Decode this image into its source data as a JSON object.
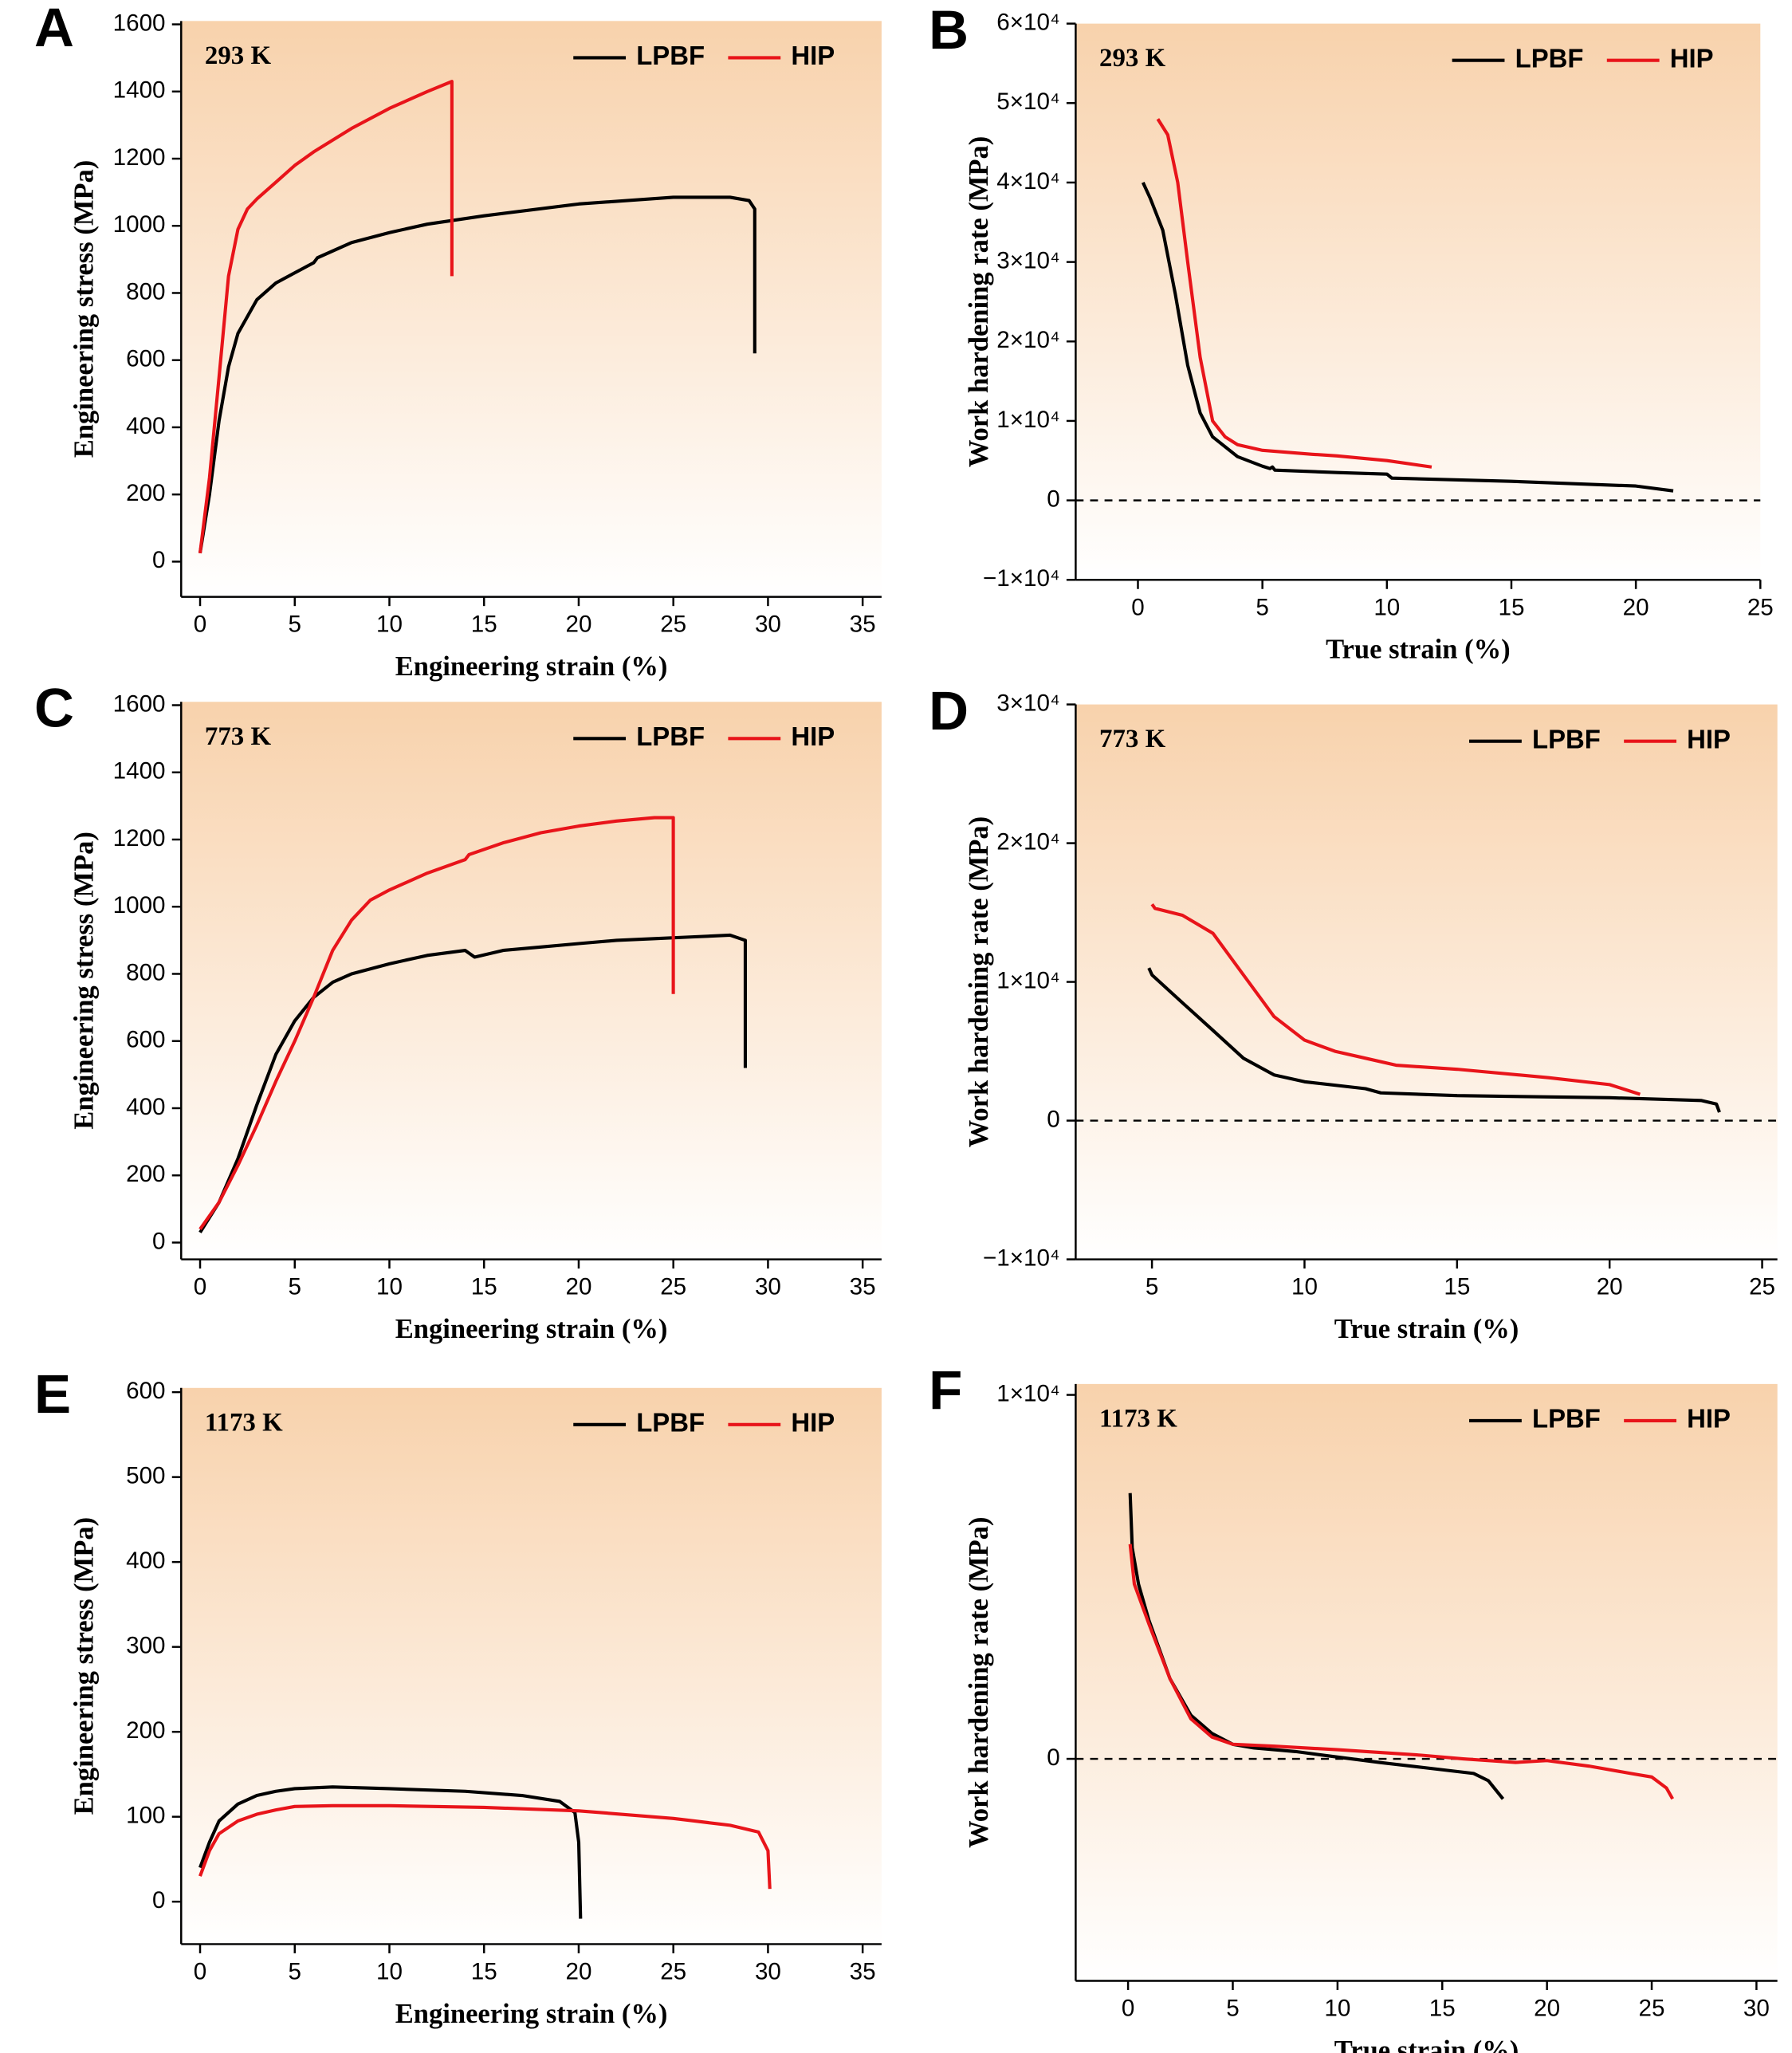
{
  "chart_data": [
    {
      "type": "line",
      "panel": "A",
      "annotation": "293 K",
      "x_label": "Engineering strain (%)",
      "y_label": "Engineering  stress (MPa)",
      "xlim": [
        -1,
        36
      ],
      "ylim": [
        -105,
        1610
      ],
      "xticks": [
        0,
        5,
        10,
        15,
        20,
        25,
        30,
        35
      ],
      "yticks": [
        0,
        200,
        400,
        600,
        800,
        1000,
        1200,
        1400,
        1600
      ],
      "legend": "upper right",
      "series": [
        {
          "name": "LPBF",
          "color": "#000000",
          "x": [
            0,
            0.5,
            1,
            1.5,
            2,
            3,
            4,
            5,
            6,
            6.2,
            8,
            10,
            12,
            15,
            20,
            25,
            28,
            29,
            29.3,
            29.3
          ],
          "values": [
            25,
            200,
            420,
            580,
            680,
            780,
            830,
            860,
            890,
            905,
            950,
            980,
            1005,
            1030,
            1065,
            1085,
            1085,
            1075,
            1050,
            620
          ]
        },
        {
          "name": "HIP",
          "color": "#e8141a",
          "x": [
            0,
            0.5,
            1,
            1.5,
            2,
            2.5,
            3,
            4,
            5,
            6,
            8,
            10,
            12,
            13.3,
            13.3
          ],
          "values": [
            25,
            250,
            550,
            850,
            990,
            1050,
            1080,
            1130,
            1180,
            1220,
            1290,
            1350,
            1400,
            1430,
            850
          ]
        }
      ]
    },
    {
      "type": "line",
      "panel": "B",
      "annotation": "293 K",
      "x_label": "True strain (%)",
      "y_label": "Work hardening rate (MPa)",
      "xlim": [
        -2.5,
        25
      ],
      "ylim": [
        -10000,
        60000
      ],
      "xticks": [
        0,
        5,
        10,
        15,
        20,
        25
      ],
      "yticks": [
        {
          "value": -10000,
          "label": "−1×10⁴"
        },
        0,
        {
          "value": 10000,
          "label": "1×10⁴"
        },
        {
          "value": 20000,
          "label": "2×10⁴"
        },
        {
          "value": 30000,
          "label": "3×10⁴"
        },
        {
          "value": 40000,
          "label": "4×10⁴"
        },
        {
          "value": 50000,
          "label": "5×10⁴"
        },
        {
          "value": 60000,
          "label": "6×10⁴"
        }
      ],
      "reference_line": 0,
      "legend": "upper right",
      "series": [
        {
          "name": "LPBF",
          "color": "#000000",
          "x": [
            0.2,
            0.5,
            1,
            1.5,
            2,
            2.5,
            3,
            4,
            5,
            5.3,
            5.4,
            5.5,
            8,
            10,
            10.2,
            15,
            20,
            21.5
          ],
          "values": [
            40000,
            38000,
            34000,
            26000,
            17000,
            11000,
            8000,
            5500,
            4300,
            4000,
            4200,
            3800,
            3500,
            3300,
            2800,
            2400,
            1800,
            1200
          ]
        },
        {
          "name": "HIP",
          "color": "#e8141a",
          "x": [
            0.8,
            1.2,
            1.6,
            2,
            2.5,
            3,
            3.5,
            4,
            5,
            7,
            8,
            10,
            11.8
          ],
          "values": [
            48000,
            46000,
            40000,
            30000,
            18000,
            10000,
            8000,
            7000,
            6300,
            5800,
            5600,
            5000,
            4200
          ]
        }
      ]
    },
    {
      "type": "line",
      "panel": "C",
      "annotation": "773 K",
      "x_label": "Engineering strain (%)",
      "y_label": "Engineering stress (MPa)",
      "xlim": [
        -1,
        36
      ],
      "ylim": [
        -50,
        1610
      ],
      "xticks": [
        0,
        5,
        10,
        15,
        20,
        25,
        30,
        35
      ],
      "yticks": [
        0,
        200,
        400,
        600,
        800,
        1000,
        1200,
        1400,
        1600
      ],
      "legend": "upper right",
      "series": [
        {
          "name": "LPBF",
          "color": "#000000",
          "x": [
            0,
            1,
            2,
            3,
            4,
            5,
            6,
            7,
            8,
            10,
            12,
            14,
            14.5,
            16,
            18,
            20,
            22,
            24,
            26,
            28,
            28.8,
            28.8
          ],
          "values": [
            30,
            120,
            250,
            410,
            560,
            660,
            730,
            775,
            800,
            830,
            855,
            870,
            850,
            870,
            880,
            890,
            900,
            905,
            910,
            915,
            900,
            520
          ]
        },
        {
          "name": "HIP",
          "color": "#e8141a",
          "x": [
            0,
            1,
            2,
            3,
            4,
            5,
            6,
            7,
            8,
            9,
            10,
            12,
            14,
            14.2,
            16,
            18,
            20,
            22,
            24,
            25,
            25
          ],
          "values": [
            40,
            120,
            230,
            350,
            480,
            600,
            730,
            870,
            960,
            1020,
            1050,
            1100,
            1140,
            1155,
            1190,
            1220,
            1240,
            1255,
            1265,
            1265,
            740
          ]
        }
      ]
    },
    {
      "type": "line",
      "panel": "D",
      "annotation": "773 K",
      "x_label": "True strain (%)",
      "y_label": "Work hardening rate (MPa)",
      "xlim": [
        2.5,
        25.5
      ],
      "ylim": [
        -10000,
        30000
      ],
      "xticks": [
        5,
        10,
        15,
        20,
        25
      ],
      "yticks": [
        {
          "value": -10000,
          "label": "−1×10⁴"
        },
        0,
        {
          "value": 10000,
          "label": "1×10⁴"
        },
        {
          "value": 20000,
          "label": "2×10⁴"
        },
        {
          "value": 30000,
          "label": "3×10⁴"
        }
      ],
      "reference_line": 0,
      "legend": "upper right",
      "series": [
        {
          "name": "LPBF",
          "color": "#000000",
          "x": [
            4.9,
            5,
            6,
            7,
            8,
            9,
            10,
            12,
            12.5,
            15,
            20,
            23,
            23.5,
            23.6
          ],
          "values": [
            11000,
            10500,
            8500,
            6500,
            4500,
            3300,
            2800,
            2300,
            2000,
            1800,
            1650,
            1450,
            1200,
            600
          ]
        },
        {
          "name": "HIP",
          "color": "#e8141a",
          "x": [
            5,
            5.1,
            6,
            7,
            8,
            9,
            10,
            11,
            12,
            13,
            15,
            18,
            20,
            21
          ],
          "values": [
            15600,
            15300,
            14800,
            13500,
            10500,
            7500,
            5800,
            5000,
            4500,
            4000,
            3700,
            3100,
            2600,
            1900
          ]
        }
      ]
    },
    {
      "type": "line",
      "panel": "E",
      "annotation": "1173 K",
      "x_label": "Engineering strain (%)",
      "y_label": "Engineering stress (MPa)",
      "xlim": [
        -1,
        36
      ],
      "ylim": [
        -50,
        605
      ],
      "xticks": [
        0,
        5,
        10,
        15,
        20,
        25,
        30,
        35
      ],
      "yticks": [
        0,
        100,
        200,
        300,
        400,
        500,
        600
      ],
      "legend": "upper right",
      "series": [
        {
          "name": "LPBF",
          "color": "#000000",
          "x": [
            0,
            0.5,
            1,
            2,
            3,
            4,
            5,
            7,
            10,
            14,
            17,
            19,
            19.8,
            20,
            20.1
          ],
          "values": [
            40,
            70,
            95,
            115,
            125,
            130,
            133,
            135,
            133,
            130,
            125,
            118,
            105,
            70,
            -20
          ]
        },
        {
          "name": "HIP",
          "color": "#e8141a",
          "x": [
            0,
            0.5,
            1,
            2,
            3,
            4,
            5,
            7,
            10,
            15,
            20,
            25,
            28,
            29.5,
            30,
            30.1
          ],
          "values": [
            30,
            60,
            80,
            95,
            103,
            108,
            112,
            113,
            113,
            111,
            107,
            98,
            90,
            82,
            60,
            15
          ]
        }
      ]
    },
    {
      "type": "line",
      "panel": "F",
      "annotation": "1173 K",
      "x_label": "True strain (%)",
      "y_label": "Work hardening rate (MPa)",
      "xlim": [
        -2.5,
        31
      ],
      "ylim": [
        -6100,
        10300
      ],
      "xticks": [
        0,
        5,
        10,
        15,
        20,
        25,
        30
      ],
      "yticks": [
        0,
        {
          "value": 10000,
          "label": "1×10⁴"
        }
      ],
      "reference_line": 0,
      "legend": "upper right",
      "series": [
        {
          "name": "LPBF",
          "color": "#000000",
          "x": [
            0.1,
            0.2,
            0.5,
            1,
            1.5,
            2,
            3,
            4,
            5,
            6,
            8,
            10,
            12,
            15,
            16.5,
            17.2,
            17.9
          ],
          "values": [
            7300,
            5800,
            4800,
            3800,
            3000,
            2200,
            1200,
            700,
            400,
            300,
            200,
            50,
            -100,
            -300,
            -400,
            -600,
            -1100
          ]
        },
        {
          "name": "HIP",
          "color": "#e8141a",
          "x": [
            0.1,
            0.3,
            1,
            2,
            3,
            4,
            5,
            7,
            10,
            14,
            16,
            18.5,
            20,
            22,
            24,
            25,
            25.7,
            26
          ],
          "values": [
            5900,
            4800,
            3700,
            2200,
            1100,
            600,
            400,
            350,
            250,
            100,
            0,
            -100,
            -50,
            -200,
            -400,
            -500,
            -800,
            -1100
          ]
        }
      ]
    }
  ]
}
